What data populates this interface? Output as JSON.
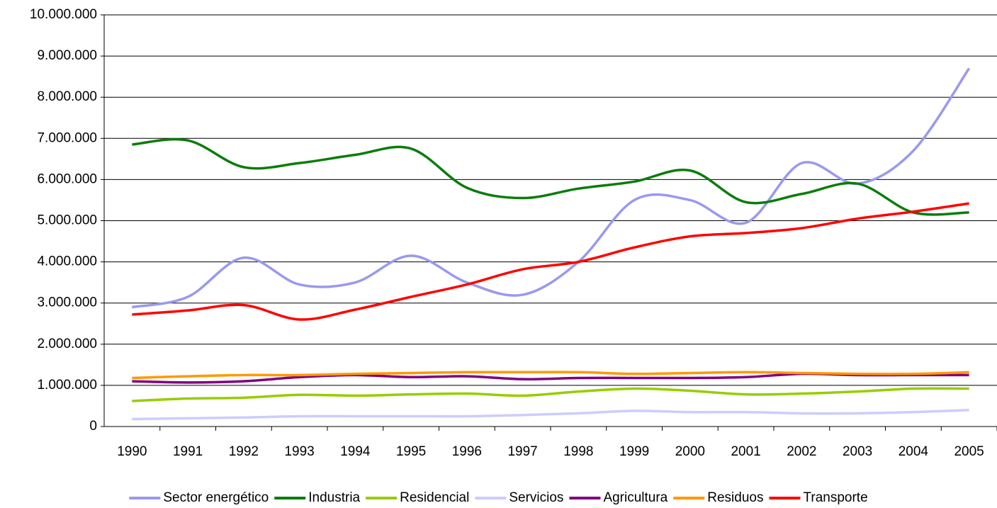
{
  "chart_data": {
    "type": "line",
    "categories": [
      "1990",
      "1991",
      "1992",
      "1993",
      "1994",
      "1995",
      "1996",
      "1997",
      "1998",
      "1999",
      "2000",
      "2001",
      "2002",
      "2003",
      "2004",
      "2005"
    ],
    "ylim": [
      0,
      10000000
    ],
    "yticks": [
      0,
      {
        "value": 1000000,
        "label": "1.000.000"
      },
      {
        "value": 2000000,
        "label": "2.000.000"
      },
      {
        "value": 3000000,
        "label": "3.000.000"
      },
      {
        "value": 4000000,
        "label": "4.000.000"
      },
      {
        "value": 5000000,
        "label": "5.000.000"
      },
      {
        "value": 6000000,
        "label": "6.000.000"
      },
      {
        "value": 7000000,
        "label": "7.000.000"
      },
      {
        "value": 8000000,
        "label": "8.000.000"
      },
      {
        "value": 9000000,
        "label": "9.000.000"
      },
      {
        "value": 10000000,
        "label": "10.000.000"
      }
    ],
    "grid": true,
    "legend": "bottom",
    "series": [
      {
        "name": "Sector energético",
        "color": "#9999ee",
        "values": [
          2900000,
          3150000,
          4100000,
          3450000,
          3500000,
          4150000,
          3500000,
          3200000,
          4000000,
          5500000,
          5500000,
          4950000,
          6400000,
          5900000,
          6700000,
          8700000
        ]
      },
      {
        "name": "Industria",
        "color": "#0a7d0a",
        "values": [
          6850000,
          6950000,
          6300000,
          6400000,
          6600000,
          6750000,
          5800000,
          5550000,
          5780000,
          5950000,
          6220000,
          5450000,
          5650000,
          5900000,
          5200000,
          5200000
        ]
      },
      {
        "name": "Residencial",
        "color": "#99cc00",
        "values": [
          620000,
          680000,
          700000,
          770000,
          750000,
          780000,
          800000,
          750000,
          850000,
          920000,
          870000,
          780000,
          800000,
          850000,
          920000,
          920000
        ]
      },
      {
        "name": "Servicios",
        "color": "#ccccff",
        "values": [
          180000,
          200000,
          220000,
          250000,
          250000,
          250000,
          250000,
          280000,
          320000,
          380000,
          350000,
          350000,
          320000,
          320000,
          350000,
          400000
        ]
      },
      {
        "name": "Agricultura",
        "color": "#800080",
        "values": [
          1100000,
          1070000,
          1100000,
          1200000,
          1250000,
          1200000,
          1220000,
          1150000,
          1180000,
          1180000,
          1180000,
          1200000,
          1280000,
          1250000,
          1250000,
          1250000
        ]
      },
      {
        "name": "Residuos",
        "color": "#ff9900",
        "values": [
          1180000,
          1220000,
          1250000,
          1250000,
          1280000,
          1300000,
          1320000,
          1320000,
          1320000,
          1280000,
          1300000,
          1320000,
          1300000,
          1280000,
          1280000,
          1320000
        ]
      },
      {
        "name": "Transporte",
        "color": "#ff0000",
        "values": [
          2720000,
          2820000,
          2950000,
          2600000,
          2840000,
          3150000,
          3450000,
          3820000,
          4000000,
          4350000,
          4620000,
          4700000,
          4820000,
          5050000,
          5220000,
          5420000
        ]
      }
    ]
  }
}
